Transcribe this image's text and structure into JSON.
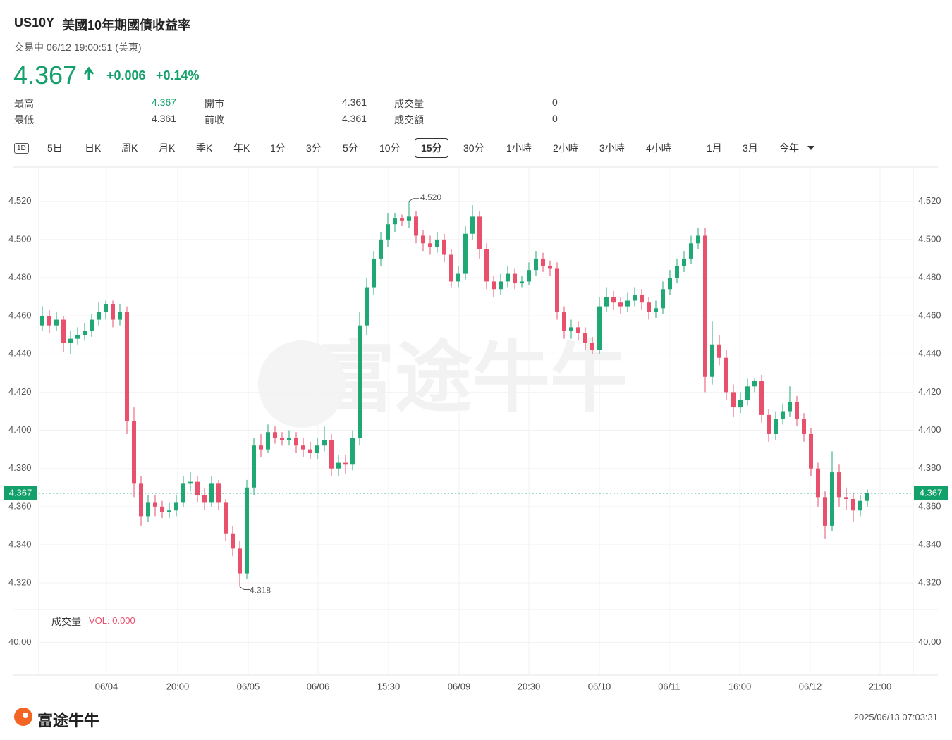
{
  "header": {
    "symbol": "US10Y",
    "name": "美國10年期國債收益率",
    "status": "交易中 06/12 19:00:51 (美東)",
    "price": "4.367",
    "change": "+0.006",
    "change_pct": "+0.14%"
  },
  "stats": [
    [
      {
        "label": "最高",
        "value": "4.367",
        "up": true
      },
      {
        "label": "開市",
        "value": "4.361"
      },
      {
        "label": "成交量",
        "value": "0"
      }
    ],
    [
      {
        "label": "最低",
        "value": "4.361"
      },
      {
        "label": "前收",
        "value": "4.361"
      },
      {
        "label": "成交額",
        "value": "0"
      }
    ]
  ],
  "tabs": [
    "1D",
    "5日",
    "日K",
    "周K",
    "月K",
    "季K",
    "年K",
    "1分",
    "3分",
    "5分",
    "10分",
    "15分",
    "30分",
    "1小時",
    "2小時",
    "3小時",
    "4小時",
    "1月",
    "3月",
    "今年"
  ],
  "active_tab": "15分",
  "watermark": "富途牛牛",
  "footer": {
    "brand": "富途牛牛",
    "timestamp": "2025/06/13 07:03:31"
  },
  "chart_data": {
    "type": "candlestick",
    "up_color": "#20a874",
    "down_color": "#e8506b",
    "xlim": [
      0,
      124
    ],
    "xticks": [
      {
        "value": 9.6,
        "label": "06/04"
      },
      {
        "value": 19.7,
        "label": "20:00"
      },
      {
        "value": 29.7,
        "label": "06/05"
      },
      {
        "value": 39.6,
        "label": "06/06"
      },
      {
        "value": 49.6,
        "label": "15:30"
      },
      {
        "value": 59.6,
        "label": "06/09"
      },
      {
        "value": 69.5,
        "label": "20:30"
      },
      {
        "value": 79.5,
        "label": "06/10"
      },
      {
        "value": 89.4,
        "label": "06/11"
      },
      {
        "value": 99.4,
        "label": "16:00"
      },
      {
        "value": 109.4,
        "label": "06/12"
      },
      {
        "value": 119.3,
        "label": "21:00"
      }
    ],
    "ylim": [
      4.306,
      4.538
    ],
    "yticks": [
      {
        "value": 4.52,
        "label": "4.520"
      },
      {
        "value": 4.5,
        "label": "4.500"
      },
      {
        "value": 4.48,
        "label": "4.480"
      },
      {
        "value": 4.46,
        "label": "4.460"
      },
      {
        "value": 4.44,
        "label": "4.440"
      },
      {
        "value": 4.42,
        "label": "4.420"
      },
      {
        "value": 4.4,
        "label": "4.400"
      },
      {
        "value": 4.38,
        "label": "4.380"
      },
      {
        "value": 4.36,
        "label": "4.360"
      },
      {
        "value": 4.34,
        "label": "4.340"
      },
      {
        "value": 4.32,
        "label": "4.320"
      }
    ],
    "grid": true,
    "last_price": 4.367,
    "high_label": {
      "value": 4.52,
      "label": "4.520"
    },
    "low_label": 4.318,
    "candles": [
      [
        4.455,
        4.465,
        4.452,
        4.46
      ],
      [
        4.46,
        4.463,
        4.451,
        4.455
      ],
      [
        4.455,
        4.462,
        4.452,
        4.458
      ],
      [
        4.458,
        4.46,
        4.441,
        4.446
      ],
      [
        4.446,
        4.452,
        4.44,
        4.448
      ],
      [
        4.448,
        4.454,
        4.445,
        4.45
      ],
      [
        4.45,
        4.456,
        4.447,
        4.452
      ],
      [
        4.452,
        4.461,
        4.449,
        4.458
      ],
      [
        4.458,
        4.467,
        4.455,
        4.462
      ],
      [
        4.462,
        4.468,
        4.458,
        4.466
      ],
      [
        4.466,
        4.468,
        4.454,
        4.458
      ],
      [
        4.458,
        4.466,
        4.455,
        4.462
      ],
      [
        4.462,
        4.465,
        4.398,
        4.405
      ],
      [
        4.405,
        4.412,
        4.365,
        4.372
      ],
      [
        4.372,
        4.376,
        4.35,
        4.355
      ],
      [
        4.355,
        4.366,
        4.352,
        4.362
      ],
      [
        4.362,
        4.366,
        4.355,
        4.36
      ],
      [
        4.36,
        4.363,
        4.354,
        4.357
      ],
      [
        4.357,
        4.362,
        4.354,
        4.358
      ],
      [
        4.358,
        4.366,
        4.355,
        4.362
      ],
      [
        4.362,
        4.376,
        4.36,
        4.372
      ],
      [
        4.372,
        4.378,
        4.368,
        4.373
      ],
      [
        4.373,
        4.376,
        4.362,
        4.366
      ],
      [
        4.366,
        4.37,
        4.358,
        4.362
      ],
      [
        4.362,
        4.376,
        4.36,
        4.372
      ],
      [
        4.372,
        4.374,
        4.358,
        4.362
      ],
      [
        4.362,
        4.364,
        4.342,
        4.346
      ],
      [
        4.346,
        4.35,
        4.334,
        4.338
      ],
      [
        4.338,
        4.342,
        4.318,
        4.325
      ],
      [
        4.325,
        4.374,
        4.322,
        4.37
      ],
      [
        4.37,
        4.396,
        4.366,
        4.392
      ],
      [
        4.392,
        4.398,
        4.386,
        4.39
      ],
      [
        4.39,
        4.403,
        4.388,
        4.399
      ],
      [
        4.399,
        4.402,
        4.393,
        4.396
      ],
      [
        4.396,
        4.399,
        4.392,
        4.395
      ],
      [
        4.395,
        4.4,
        4.392,
        4.396
      ],
      [
        4.396,
        4.399,
        4.388,
        4.392
      ],
      [
        4.392,
        4.396,
        4.386,
        4.39
      ],
      [
        4.39,
        4.394,
        4.385,
        4.388
      ],
      [
        4.388,
        4.396,
        4.385,
        4.392
      ],
      [
        4.392,
        4.402,
        4.389,
        4.395
      ],
      [
        4.395,
        4.398,
        4.376,
        4.38
      ],
      [
        4.38,
        4.387,
        4.376,
        4.383
      ],
      [
        4.383,
        4.387,
        4.377,
        4.382
      ],
      [
        4.382,
        4.4,
        4.379,
        4.396
      ],
      [
        4.396,
        4.462,
        4.392,
        4.455
      ],
      [
        4.455,
        4.48,
        4.45,
        4.475
      ],
      [
        4.475,
        4.494,
        4.471,
        4.49
      ],
      [
        4.49,
        4.504,
        4.486,
        4.5
      ],
      [
        4.5,
        4.514,
        4.496,
        4.508
      ],
      [
        4.508,
        4.514,
        4.504,
        4.511
      ],
      [
        4.511,
        4.513,
        4.507,
        4.51
      ],
      [
        4.51,
        4.52,
        4.506,
        4.512
      ],
      [
        4.512,
        4.515,
        4.498,
        4.502
      ],
      [
        4.502,
        4.505,
        4.494,
        4.498
      ],
      [
        4.498,
        4.502,
        4.492,
        4.496
      ],
      [
        4.496,
        4.504,
        4.493,
        4.5
      ],
      [
        4.5,
        4.503,
        4.488,
        4.492
      ],
      [
        4.492,
        4.495,
        4.475,
        4.478
      ],
      [
        4.478,
        4.486,
        4.475,
        4.482
      ],
      [
        4.482,
        4.507,
        4.479,
        4.503
      ],
      [
        4.503,
        4.518,
        4.5,
        4.512
      ],
      [
        4.512,
        4.515,
        4.49,
        4.495
      ],
      [
        4.495,
        4.498,
        4.474,
        4.478
      ],
      [
        4.478,
        4.481,
        4.47,
        4.474
      ],
      [
        4.474,
        4.482,
        4.471,
        4.478
      ],
      [
        4.478,
        4.486,
        4.475,
        4.482
      ],
      [
        4.482,
        4.485,
        4.474,
        4.477
      ],
      [
        4.477,
        4.481,
        4.475,
        4.478
      ],
      [
        4.478,
        4.488,
        4.476,
        4.484
      ],
      [
        4.484,
        4.494,
        4.481,
        4.49
      ],
      [
        4.49,
        4.493,
        4.483,
        4.486
      ],
      [
        4.486,
        4.489,
        4.481,
        4.485
      ],
      [
        4.485,
        4.488,
        4.458,
        4.462
      ],
      [
        4.462,
        4.465,
        4.448,
        4.452
      ],
      [
        4.452,
        4.458,
        4.448,
        4.454
      ],
      [
        4.454,
        4.457,
        4.447,
        4.451
      ],
      [
        4.451,
        4.454,
        4.442,
        4.446
      ],
      [
        4.446,
        4.449,
        4.44,
        4.442
      ],
      [
        4.442,
        4.47,
        4.44,
        4.465
      ],
      [
        4.465,
        4.475,
        4.462,
        4.47
      ],
      [
        4.47,
        4.473,
        4.463,
        4.467
      ],
      [
        4.467,
        4.47,
        4.461,
        4.465
      ],
      [
        4.465,
        4.472,
        4.462,
        4.468
      ],
      [
        4.468,
        4.475,
        4.465,
        4.471
      ],
      [
        4.471,
        4.474,
        4.463,
        4.467
      ],
      [
        4.467,
        4.47,
        4.458,
        4.462
      ],
      [
        4.462,
        4.468,
        4.459,
        4.464
      ],
      [
        4.464,
        4.478,
        4.461,
        4.474
      ],
      [
        4.474,
        4.484,
        4.471,
        4.48
      ],
      [
        4.48,
        4.49,
        4.477,
        4.486
      ],
      [
        4.486,
        4.494,
        4.483,
        4.49
      ],
      [
        4.49,
        4.502,
        4.487,
        4.498
      ],
      [
        4.498,
        4.506,
        4.495,
        4.502
      ],
      [
        4.502,
        4.506,
        4.42,
        4.428
      ],
      [
        4.428,
        4.457,
        4.424,
        4.445
      ],
      [
        4.445,
        4.45,
        4.434,
        4.438
      ],
      [
        4.438,
        4.442,
        4.416,
        4.42
      ],
      [
        4.42,
        4.424,
        4.407,
        4.412
      ],
      [
        4.412,
        4.42,
        4.409,
        4.416
      ],
      [
        4.416,
        4.427,
        4.413,
        4.423
      ],
      [
        4.423,
        4.427,
        4.42,
        4.426
      ],
      [
        4.426,
        4.429,
        4.404,
        4.408
      ],
      [
        4.408,
        4.411,
        4.394,
        4.398
      ],
      [
        4.398,
        4.41,
        4.395,
        4.406
      ],
      [
        4.406,
        4.414,
        4.403,
        4.41
      ],
      [
        4.41,
        4.423,
        4.407,
        4.415
      ],
      [
        4.415,
        4.418,
        4.402,
        4.406
      ],
      [
        4.406,
        4.409,
        4.394,
        4.398
      ],
      [
        4.398,
        4.401,
        4.376,
        4.38
      ],
      [
        4.38,
        4.383,
        4.36,
        4.365
      ],
      [
        4.365,
        4.368,
        4.343,
        4.35
      ],
      [
        4.35,
        4.389,
        4.347,
        4.378
      ],
      [
        4.378,
        4.382,
        4.36,
        4.365
      ],
      [
        4.365,
        4.37,
        4.358,
        4.364
      ],
      [
        4.364,
        4.367,
        4.352,
        4.358
      ],
      [
        4.358,
        4.366,
        4.355,
        4.363
      ],
      [
        4.363,
        4.369,
        4.36,
        4.367
      ]
    ],
    "volume": {
      "label": "成交量",
      "value_label": "VOL: 0.000",
      "ylim": [
        0,
        80
      ],
      "yticks": [
        {
          "value": 40,
          "label": "40.00"
        }
      ]
    }
  }
}
